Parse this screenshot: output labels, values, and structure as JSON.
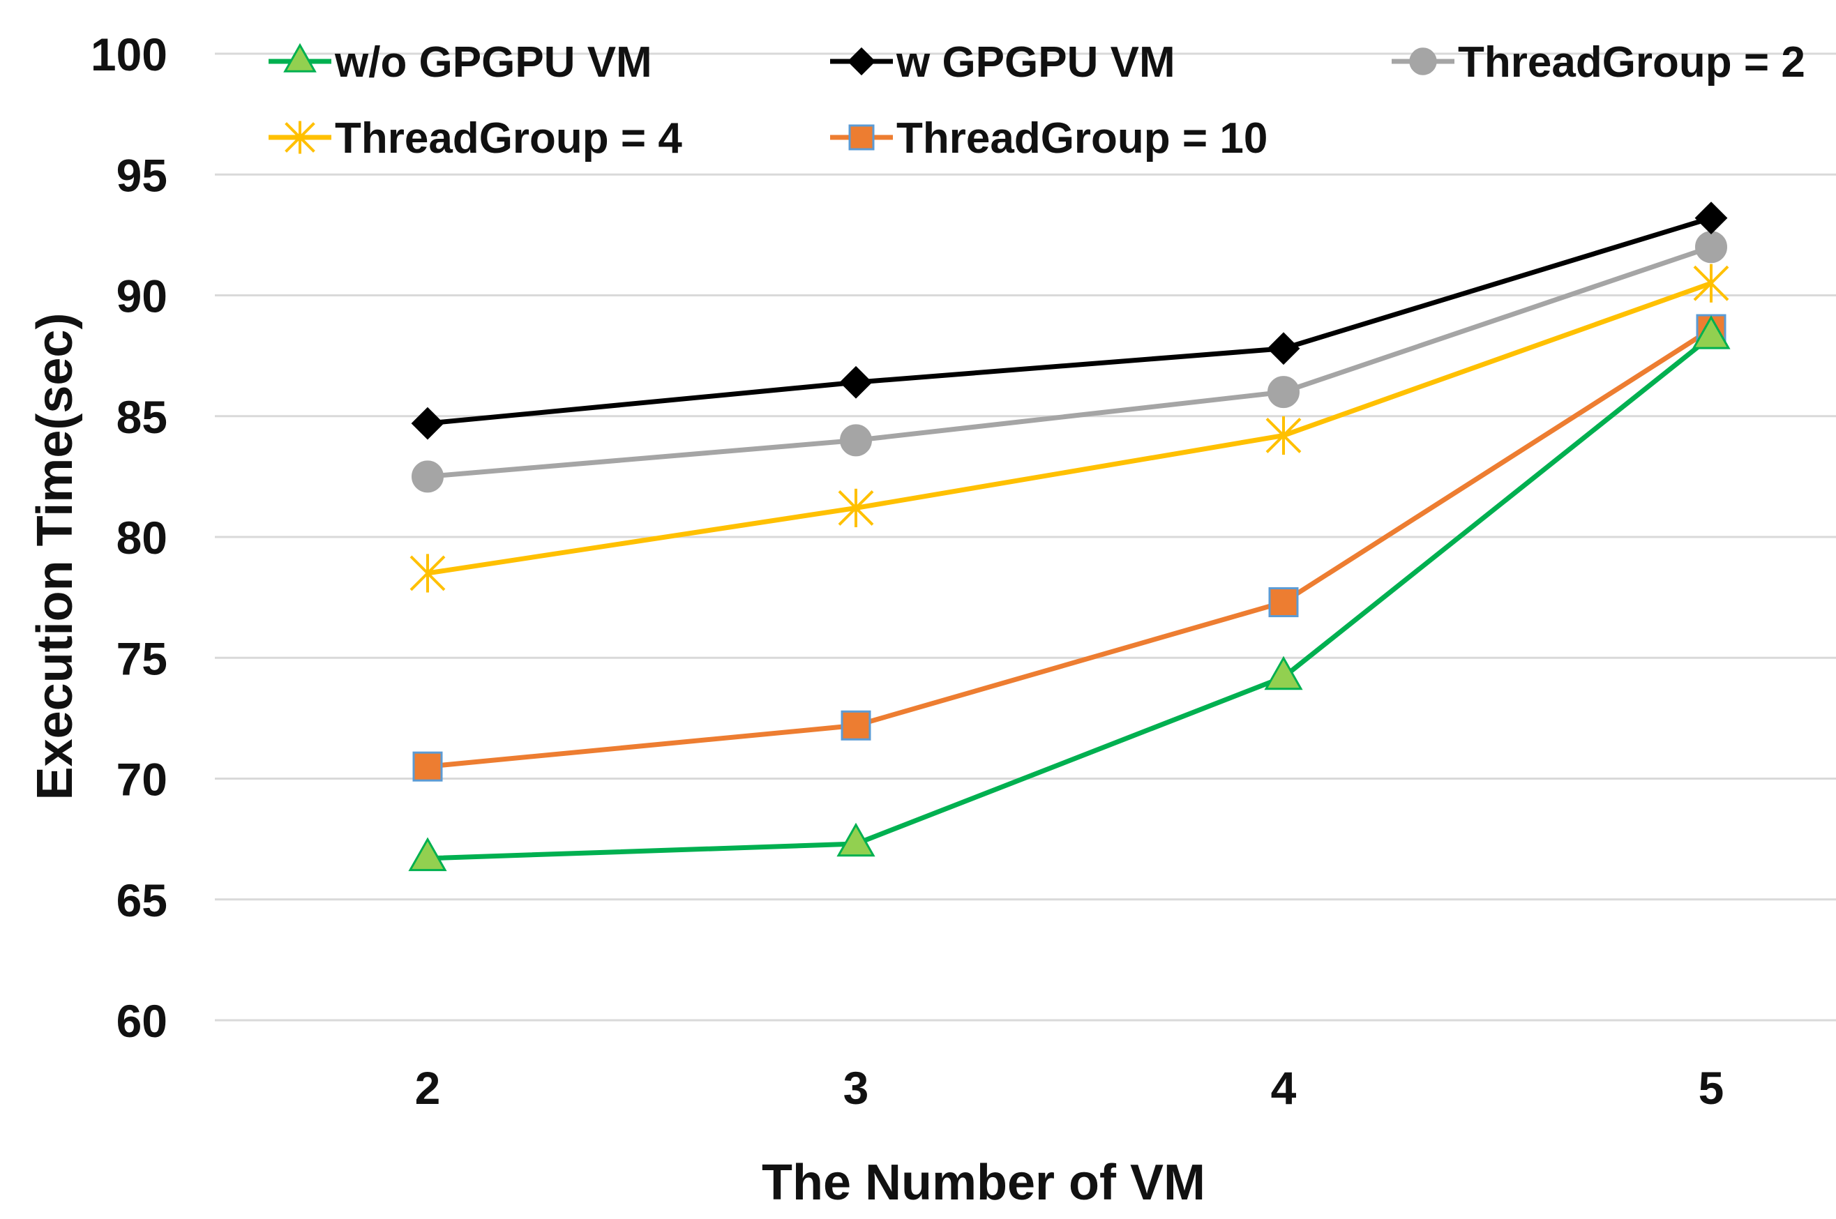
{
  "chart_data": {
    "type": "line",
    "title": "",
    "xlabel": "The Number of VM",
    "ylabel": "Execution Time(sec)",
    "x": [
      2,
      3,
      4,
      5
    ],
    "ylim": [
      60,
      100
    ],
    "yticks": [
      60,
      65,
      70,
      75,
      80,
      85,
      90,
      95,
      100
    ],
    "grid": true,
    "legend_position": "top",
    "series": [
      {
        "name": "w/o GPGPU VM",
        "values": [
          66.7,
          67.3,
          74.2,
          88.3
        ],
        "color": "#00b050",
        "marker": "triangle",
        "marker_fill": "#92d050"
      },
      {
        "name": "w GPGPU VM",
        "values": [
          84.7,
          86.4,
          87.8,
          93.2
        ],
        "color": "#000000",
        "marker": "diamond",
        "marker_fill": "#000000"
      },
      {
        "name": "ThreadGroup = 2",
        "values": [
          82.5,
          84.0,
          86.0,
          92.0
        ],
        "color": "#a5a5a5",
        "marker": "circle",
        "marker_fill": "#a5a5a5"
      },
      {
        "name": "ThreadGroup = 4",
        "values": [
          78.5,
          81.2,
          84.2,
          90.5
        ],
        "color": "#ffc000",
        "marker": "star",
        "marker_fill": "none"
      },
      {
        "name": "ThreadGroup = 10",
        "values": [
          70.5,
          72.2,
          77.3,
          88.6
        ],
        "color": "#ed7d31",
        "marker": "square",
        "marker_fill": "#ed7d31"
      }
    ]
  }
}
